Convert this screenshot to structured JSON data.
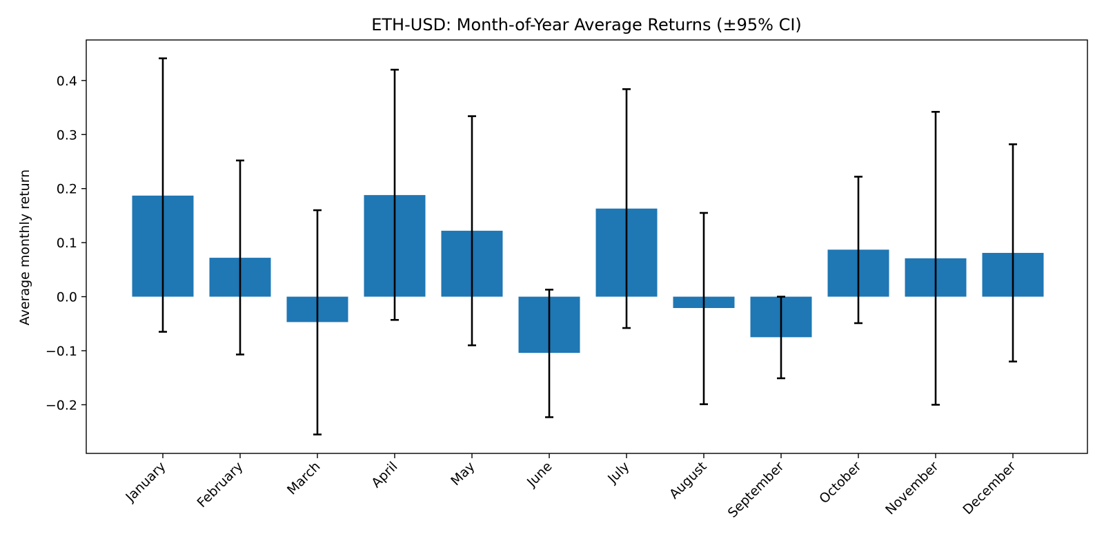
{
  "chart_data": {
    "type": "bar",
    "title": "ETH-USD: Month-of-Year Average Returns (±95% CI)",
    "xlabel": "",
    "ylabel": "Average monthly return",
    "categories": [
      "January",
      "February",
      "March",
      "April",
      "May",
      "June",
      "July",
      "August",
      "September",
      "October",
      "November",
      "December"
    ],
    "values": [
      0.187,
      0.072,
      -0.047,
      0.188,
      0.122,
      -0.104,
      0.163,
      -0.021,
      -0.075,
      0.087,
      0.071,
      0.081
    ],
    "ci_lower": [
      -0.065,
      -0.107,
      -0.255,
      -0.043,
      -0.09,
      -0.223,
      -0.058,
      -0.199,
      -0.151,
      -0.049,
      -0.2,
      -0.12
    ],
    "ci_upper": [
      0.441,
      0.252,
      0.16,
      0.42,
      0.334,
      0.013,
      0.384,
      0.155,
      0.0,
      0.222,
      0.342,
      0.282
    ],
    "ylim": [
      -0.29,
      0.475
    ],
    "yticks": [
      -0.2,
      -0.1,
      0.0,
      0.1,
      0.2,
      0.3,
      0.4
    ],
    "ytick_labels": [
      "−0.2",
      "−0.1",
      "0.0",
      "0.1",
      "0.2",
      "0.3",
      "0.4"
    ],
    "grid": false,
    "legend": "none",
    "colors": {
      "bar": "#1f77b4",
      "errorbar": "#000000",
      "axes": "#000000"
    }
  }
}
